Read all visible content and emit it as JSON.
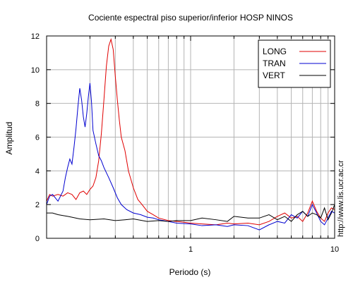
{
  "chart_data": {
    "type": "line",
    "title": "Cociente espectral piso superior/inferior  HOSP NINOS",
    "xlabel": "Periodo (s)",
    "ylabel": "Amplitud",
    "xscale": "log",
    "xlim": [
      0.1,
      10
    ],
    "ylim": [
      0,
      12
    ],
    "xticks": [
      {
        "value": 1,
        "label": "1"
      },
      {
        "value": 10,
        "label": "10"
      }
    ],
    "yticks": [
      0,
      2,
      4,
      6,
      8,
      10,
      12
    ],
    "grid": true,
    "legend": "top-right",
    "side_text": "http://www.lis.ucr.ac.cr",
    "series": [
      {
        "name": "LONG",
        "color": "#e00000",
        "points": [
          [
            0.1,
            2.2
          ],
          [
            0.105,
            2.6
          ],
          [
            0.11,
            2.5
          ],
          [
            0.12,
            2.6
          ],
          [
            0.13,
            2.5
          ],
          [
            0.14,
            2.7
          ],
          [
            0.15,
            2.6
          ],
          [
            0.16,
            2.3
          ],
          [
            0.17,
            2.7
          ],
          [
            0.18,
            2.8
          ],
          [
            0.19,
            2.6
          ],
          [
            0.2,
            2.9
          ],
          [
            0.21,
            3.1
          ],
          [
            0.22,
            3.6
          ],
          [
            0.23,
            4.6
          ],
          [
            0.24,
            6.2
          ],
          [
            0.25,
            8.2
          ],
          [
            0.26,
            10.2
          ],
          [
            0.27,
            11.4
          ],
          [
            0.28,
            11.8
          ],
          [
            0.29,
            11.2
          ],
          [
            0.3,
            9.6
          ],
          [
            0.31,
            8.2
          ],
          [
            0.32,
            7.0
          ],
          [
            0.33,
            6.0
          ],
          [
            0.35,
            5.2
          ],
          [
            0.37,
            4.0
          ],
          [
            0.4,
            3.0
          ],
          [
            0.43,
            2.3
          ],
          [
            0.46,
            2.0
          ],
          [
            0.5,
            1.6
          ],
          [
            0.55,
            1.4
          ],
          [
            0.6,
            1.2
          ],
          [
            0.7,
            1.05
          ],
          [
            0.8,
            1.0
          ],
          [
            0.9,
            0.95
          ],
          [
            1.0,
            0.9
          ],
          [
            1.2,
            0.85
          ],
          [
            1.5,
            0.8
          ],
          [
            1.8,
            0.9
          ],
          [
            2.0,
            0.85
          ],
          [
            2.5,
            0.9
          ],
          [
            3.0,
            0.8
          ],
          [
            3.5,
            1.0
          ],
          [
            4.0,
            1.3
          ],
          [
            4.5,
            1.5
          ],
          [
            5.0,
            1.2
          ],
          [
            5.5,
            1.3
          ],
          [
            6.0,
            1.0
          ],
          [
            6.5,
            1.5
          ],
          [
            7.0,
            2.2
          ],
          [
            7.5,
            1.6
          ],
          [
            8.0,
            1.2
          ],
          [
            8.5,
            1.0
          ],
          [
            9.0,
            1.5
          ],
          [
            9.5,
            1.8
          ],
          [
            10.0,
            1.7
          ]
        ]
      },
      {
        "name": "TRAN",
        "color": "#0000d0",
        "points": [
          [
            0.1,
            2.0
          ],
          [
            0.105,
            2.5
          ],
          [
            0.11,
            2.6
          ],
          [
            0.12,
            2.2
          ],
          [
            0.13,
            2.8
          ],
          [
            0.135,
            3.6
          ],
          [
            0.14,
            4.2
          ],
          [
            0.145,
            4.7
          ],
          [
            0.15,
            4.4
          ],
          [
            0.155,
            5.4
          ],
          [
            0.16,
            6.5
          ],
          [
            0.165,
            7.8
          ],
          [
            0.17,
            8.9
          ],
          [
            0.175,
            8.2
          ],
          [
            0.18,
            7.2
          ],
          [
            0.185,
            6.6
          ],
          [
            0.19,
            7.4
          ],
          [
            0.195,
            8.4
          ],
          [
            0.2,
            9.2
          ],
          [
            0.205,
            8.1
          ],
          [
            0.21,
            6.4
          ],
          [
            0.22,
            5.6
          ],
          [
            0.23,
            4.9
          ],
          [
            0.24,
            4.6
          ],
          [
            0.25,
            4.2
          ],
          [
            0.27,
            3.6
          ],
          [
            0.29,
            3.0
          ],
          [
            0.31,
            2.4
          ],
          [
            0.33,
            2.0
          ],
          [
            0.36,
            1.7
          ],
          [
            0.4,
            1.5
          ],
          [
            0.45,
            1.4
          ],
          [
            0.5,
            1.25
          ],
          [
            0.55,
            1.2
          ],
          [
            0.6,
            1.1
          ],
          [
            0.7,
            1.0
          ],
          [
            0.8,
            0.9
          ],
          [
            1.0,
            0.85
          ],
          [
            1.2,
            0.75
          ],
          [
            1.5,
            0.8
          ],
          [
            1.8,
            0.7
          ],
          [
            2.0,
            0.8
          ],
          [
            2.5,
            0.75
          ],
          [
            3.0,
            0.5
          ],
          [
            3.5,
            0.8
          ],
          [
            4.0,
            1.0
          ],
          [
            4.5,
            0.9
          ],
          [
            5.0,
            1.4
          ],
          [
            5.5,
            1.2
          ],
          [
            6.0,
            1.6
          ],
          [
            6.5,
            1.3
          ],
          [
            7.0,
            2.0
          ],
          [
            7.5,
            1.5
          ],
          [
            8.0,
            1.0
          ],
          [
            8.5,
            0.8
          ],
          [
            9.0,
            1.2
          ],
          [
            9.5,
            1.6
          ],
          [
            10.0,
            1.5
          ]
        ]
      },
      {
        "name": "VERT",
        "color": "#000000",
        "points": [
          [
            0.1,
            1.5
          ],
          [
            0.11,
            1.5
          ],
          [
            0.12,
            1.4
          ],
          [
            0.13,
            1.35
          ],
          [
            0.14,
            1.3
          ],
          [
            0.15,
            1.25
          ],
          [
            0.17,
            1.15
          ],
          [
            0.2,
            1.1
          ],
          [
            0.25,
            1.15
          ],
          [
            0.3,
            1.05
          ],
          [
            0.35,
            1.1
          ],
          [
            0.4,
            1.15
          ],
          [
            0.5,
            1.0
          ],
          [
            0.6,
            1.05
          ],
          [
            0.7,
            1.0
          ],
          [
            0.8,
            1.05
          ],
          [
            1.0,
            1.05
          ],
          [
            1.2,
            1.2
          ],
          [
            1.5,
            1.1
          ],
          [
            1.8,
            1.0
          ],
          [
            2.0,
            1.3
          ],
          [
            2.5,
            1.2
          ],
          [
            3.0,
            1.2
          ],
          [
            3.5,
            1.4
          ],
          [
            4.0,
            1.1
          ],
          [
            4.5,
            1.3
          ],
          [
            5.0,
            1.0
          ],
          [
            5.5,
            1.4
          ],
          [
            6.0,
            1.6
          ],
          [
            6.5,
            1.3
          ],
          [
            7.0,
            1.5
          ],
          [
            7.5,
            1.4
          ],
          [
            8.0,
            1.2
          ],
          [
            8.5,
            1.8
          ],
          [
            9.0,
            1.1
          ],
          [
            9.5,
            1.5
          ],
          [
            10.0,
            2.0
          ]
        ]
      }
    ]
  }
}
